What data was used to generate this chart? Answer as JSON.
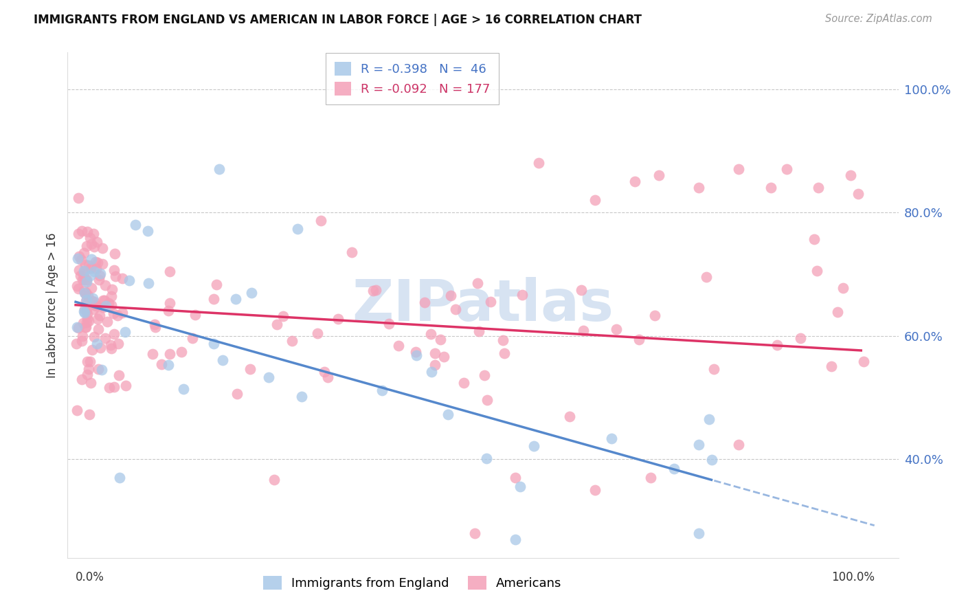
{
  "title": "IMMIGRANTS FROM ENGLAND VS AMERICAN IN LABOR FORCE | AGE > 16 CORRELATION CHART",
  "source": "Source: ZipAtlas.com",
  "ylabel": "In Labor Force | Age > 16",
  "england_R": -0.398,
  "england_N": 46,
  "americans_R": -0.092,
  "americans_N": 177,
  "england_color": "#a8c8e8",
  "americans_color": "#f4a0b8",
  "trend_england_color": "#5588cc",
  "trend_americans_color": "#dd3366",
  "grid_color": "#c8c8c8",
  "background_color": "#ffffff",
  "yticks": [
    0.4,
    0.6,
    0.8,
    1.0
  ],
  "ytick_labels": [
    "40.0%",
    "60.0%",
    "80.0%",
    "100.0%"
  ],
  "xlim": [
    -0.01,
    1.03
  ],
  "ylim": [
    0.24,
    1.06
  ],
  "watermark_text": "ZIPatlas",
  "watermark_color": "#d0dff0",
  "trend_eng_x0": 0.0,
  "trend_eng_y0": 0.655,
  "trend_eng_x1": 0.8,
  "trend_eng_y1": 0.365,
  "trend_am_x0": 0.0,
  "trend_am_y0": 0.65,
  "trend_am_x1": 1.0,
  "trend_am_y1": 0.575
}
